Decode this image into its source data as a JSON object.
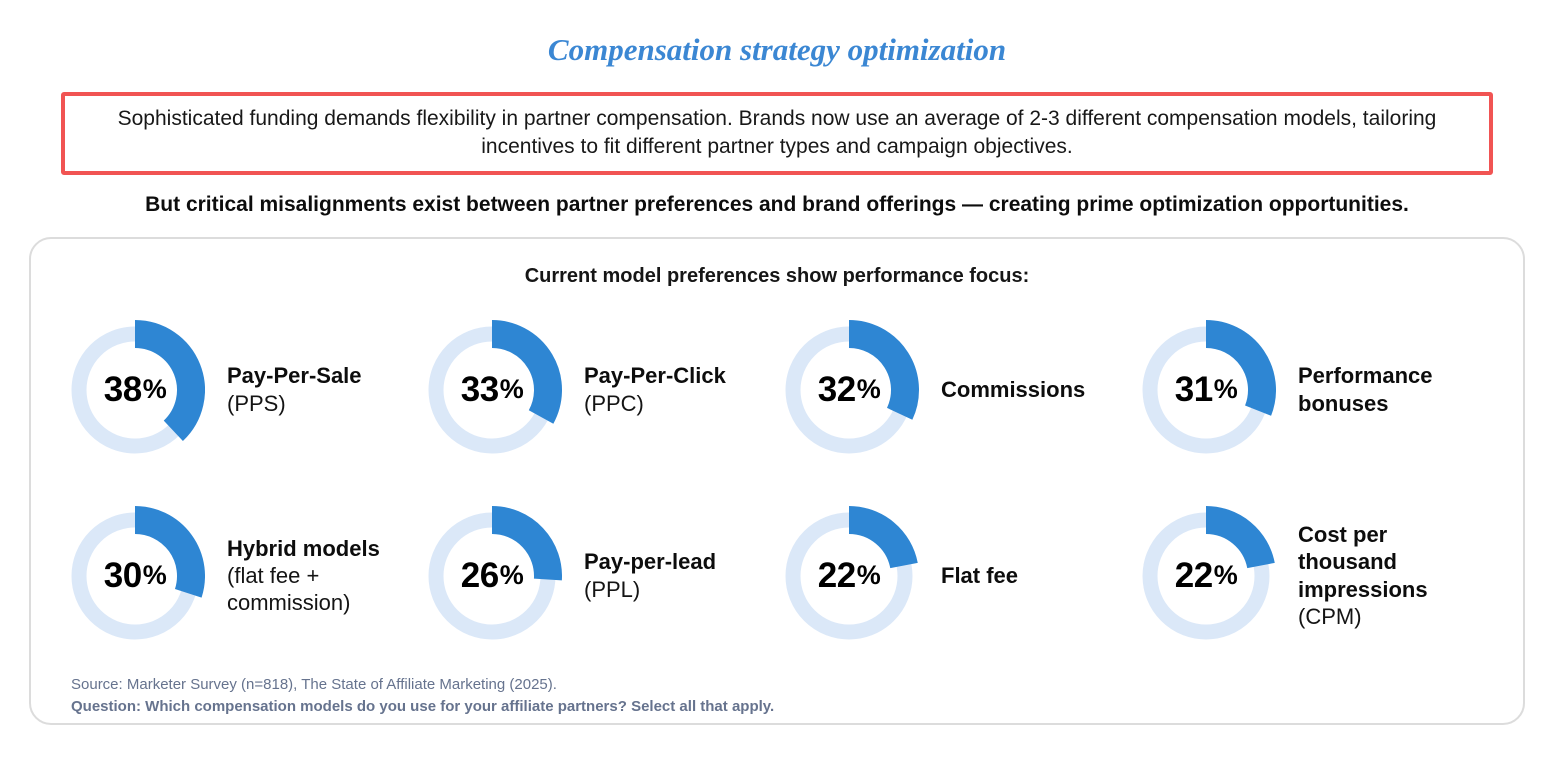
{
  "page": {
    "title": "Compensation strategy optimization",
    "highlight_text": "Sophisticated funding demands flexibility in partner compensation. Brands now use an average of 2-3 different compensation models, tailoring incentives to fit different partner types and campaign objectives.",
    "subtitle": "But critical misalignments exist between partner preferences and brand offerings — creating prime optimization opportunities."
  },
  "card": {
    "heading": "Current model preferences show performance focus:",
    "source_line": "Source: Marketer Survey (n=818), The State of Affiliate Marketing (2025).",
    "question_line": "Question: Which compensation models do you use for your affiliate partners? Select all that apply."
  },
  "colors": {
    "title_blue": "#3b87d3",
    "accent_blue": "#2e86d3",
    "track_blue": "#dbe8f8",
    "highlight_border_red": "#f15453",
    "source_gray": "#66738e"
  },
  "chart_data": {
    "type": "donut-grid",
    "title": "Current model preferences show performance focus:",
    "unit": "%",
    "value_range": [
      0,
      100
    ],
    "arc_start": "top, clockwise",
    "items": [
      {
        "value": 38,
        "label": "Pay-Per-Sale",
        "sublabel": "(PPS)"
      },
      {
        "value": 33,
        "label": "Pay-Per-Click",
        "sublabel": "(PPC)"
      },
      {
        "value": 32,
        "label": "Commissions",
        "sublabel": ""
      },
      {
        "value": 31,
        "label": "Performance bonuses",
        "sublabel": ""
      },
      {
        "value": 30,
        "label": "Hybrid models",
        "sublabel": "(flat fee + commission)"
      },
      {
        "value": 26,
        "label": "Pay-per-lead",
        "sublabel": "(PPL)"
      },
      {
        "value": 22,
        "label": "Flat fee",
        "sublabel": ""
      },
      {
        "value": 22,
        "label": "Cost per thousand impressions",
        "sublabel": "(CPM)"
      }
    ]
  }
}
